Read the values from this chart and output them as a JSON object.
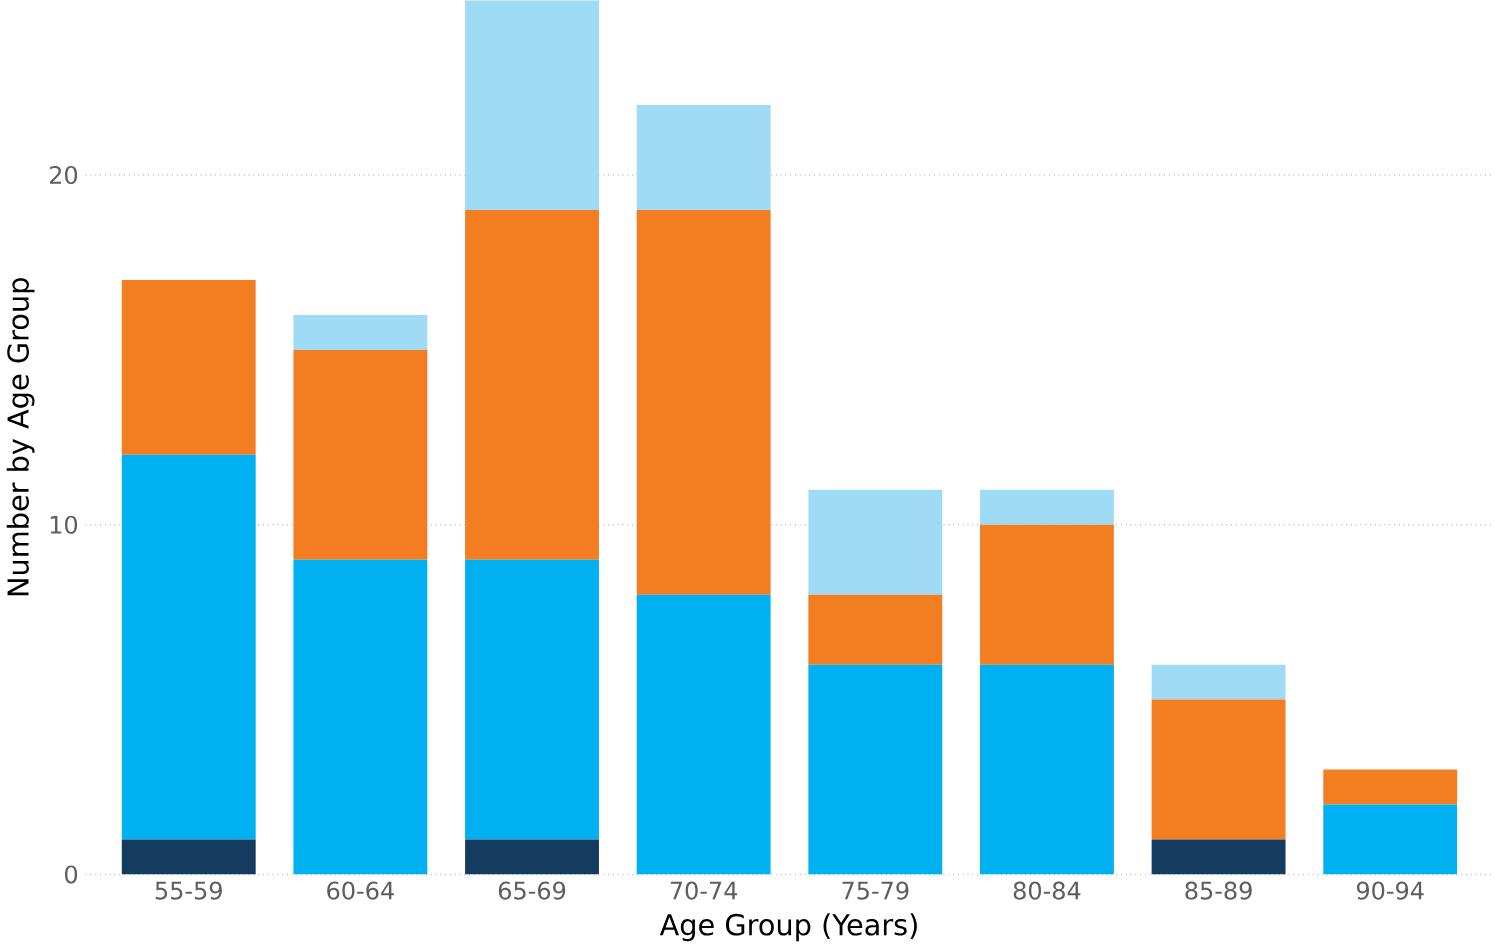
{
  "chart_data": {
    "type": "bar",
    "stacked": true,
    "xlabel": "Age Group (Years)",
    "ylabel": "Number by Age Group",
    "categories": [
      "55-59",
      "60-64",
      "65-69",
      "70-74",
      "75-79",
      "80-84",
      "85-89",
      "90-94"
    ],
    "series": [
      {
        "color": "#163b60",
        "values": [
          1,
          0,
          1,
          0,
          0,
          0,
          1,
          0
        ]
      },
      {
        "color": "#00b0f0",
        "values": [
          11,
          9,
          8,
          8,
          6,
          6,
          0,
          2
        ]
      },
      {
        "color": "#f37e22",
        "values": [
          5,
          6,
          10,
          11,
          2,
          4,
          4,
          1
        ]
      },
      {
        "color": "#9fdbf5",
        "values": [
          0,
          1,
          6,
          3,
          3,
          1,
          1,
          0
        ]
      }
    ],
    "ylim": [
      0,
      25
    ],
    "yticks": [
      0,
      10,
      20
    ],
    "grid": "y"
  }
}
